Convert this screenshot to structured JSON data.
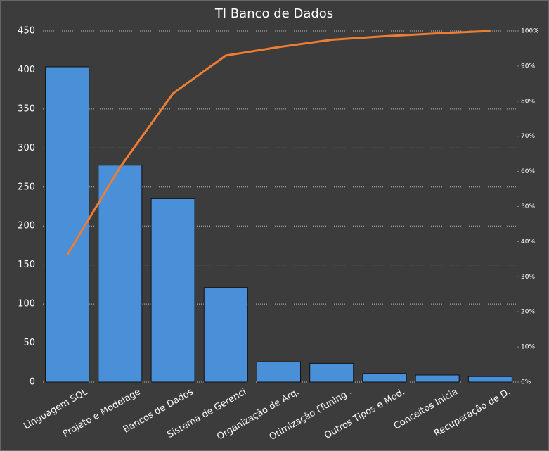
{
  "chart_data": {
    "type": "bar",
    "title": "TI Banco de Dados",
    "categories": [
      "Linguagem SQL",
      "Projeto e Modelage",
      "Bancos de Dados",
      "Sistema de Gerenci",
      "Organização de Arq.",
      "Otimização (Tuning .",
      "Outros Tipos e Mod.",
      "Conceitos Inicia",
      "Recuperação de D."
    ],
    "series": [
      {
        "type": "bar",
        "color": "#4a90d9",
        "values": [
          404,
          278,
          235,
          121,
          26,
          24,
          11,
          9,
          7
        ]
      },
      {
        "type": "line",
        "axis": "y2",
        "color": "#ed7d31",
        "values": [
          36.2,
          61.2,
          82.2,
          93.0,
          95.4,
          97.5,
          98.5,
          99.3,
          100
        ]
      }
    ],
    "ylim": [
      0,
      450
    ],
    "yticks": [
      0,
      50,
      100,
      150,
      200,
      250,
      300,
      350,
      400,
      450
    ],
    "y2lim": [
      0,
      100
    ],
    "y2ticks": [
      {
        "value": 0,
        "label": "0%"
      },
      {
        "value": 10,
        "label": "10%"
      },
      {
        "value": 20,
        "label": "20%"
      },
      {
        "value": 30,
        "label": "30%"
      },
      {
        "value": 40,
        "label": "40%"
      },
      {
        "value": 50,
        "label": "50%"
      },
      {
        "value": 60,
        "label": "60%"
      },
      {
        "value": 70,
        "label": "70%"
      },
      {
        "value": 80,
        "label": "80%"
      },
      {
        "value": 90,
        "label": "90%"
      },
      {
        "value": 100,
        "label": "100%"
      }
    ],
    "grid": true
  }
}
